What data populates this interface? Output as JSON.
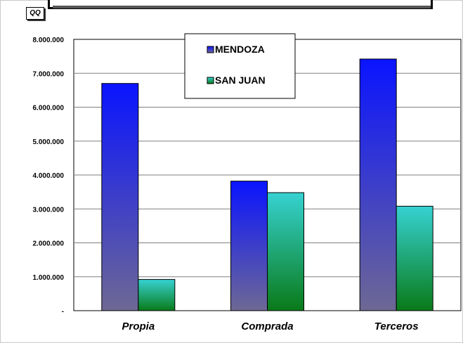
{
  "units_label": "QQ",
  "chart_data": {
    "type": "bar",
    "categories": [
      "Propia",
      "Comprada",
      "Terceros"
    ],
    "series": [
      {
        "name": "MENDOZA",
        "values": [
          6700000,
          3820000,
          7420000
        ],
        "color_top": "#0a14ff",
        "color_bottom": "#6e6894"
      },
      {
        "name": "SAN JUAN",
        "values": [
          920000,
          3480000,
          3080000
        ],
        "color_top": "#36d2d2",
        "color_bottom": "#0a7a18"
      }
    ],
    "ylim": [
      0,
      8000000
    ],
    "y_ticks": [
      {
        "value": 0,
        "label": "-"
      },
      {
        "value": 1000000,
        "label": "1.000.000"
      },
      {
        "value": 2000000,
        "label": "2.000.000"
      },
      {
        "value": 3000000,
        "label": "3.000.000"
      },
      {
        "value": 4000000,
        "label": "4.000.000"
      },
      {
        "value": 5000000,
        "label": "5.000.000"
      },
      {
        "value": 6000000,
        "label": "6.000.000"
      },
      {
        "value": 7000000,
        "label": "7.000.000"
      },
      {
        "value": 8000000,
        "label": "8.000.000"
      }
    ],
    "grid": true,
    "legend_position": "top-center"
  }
}
